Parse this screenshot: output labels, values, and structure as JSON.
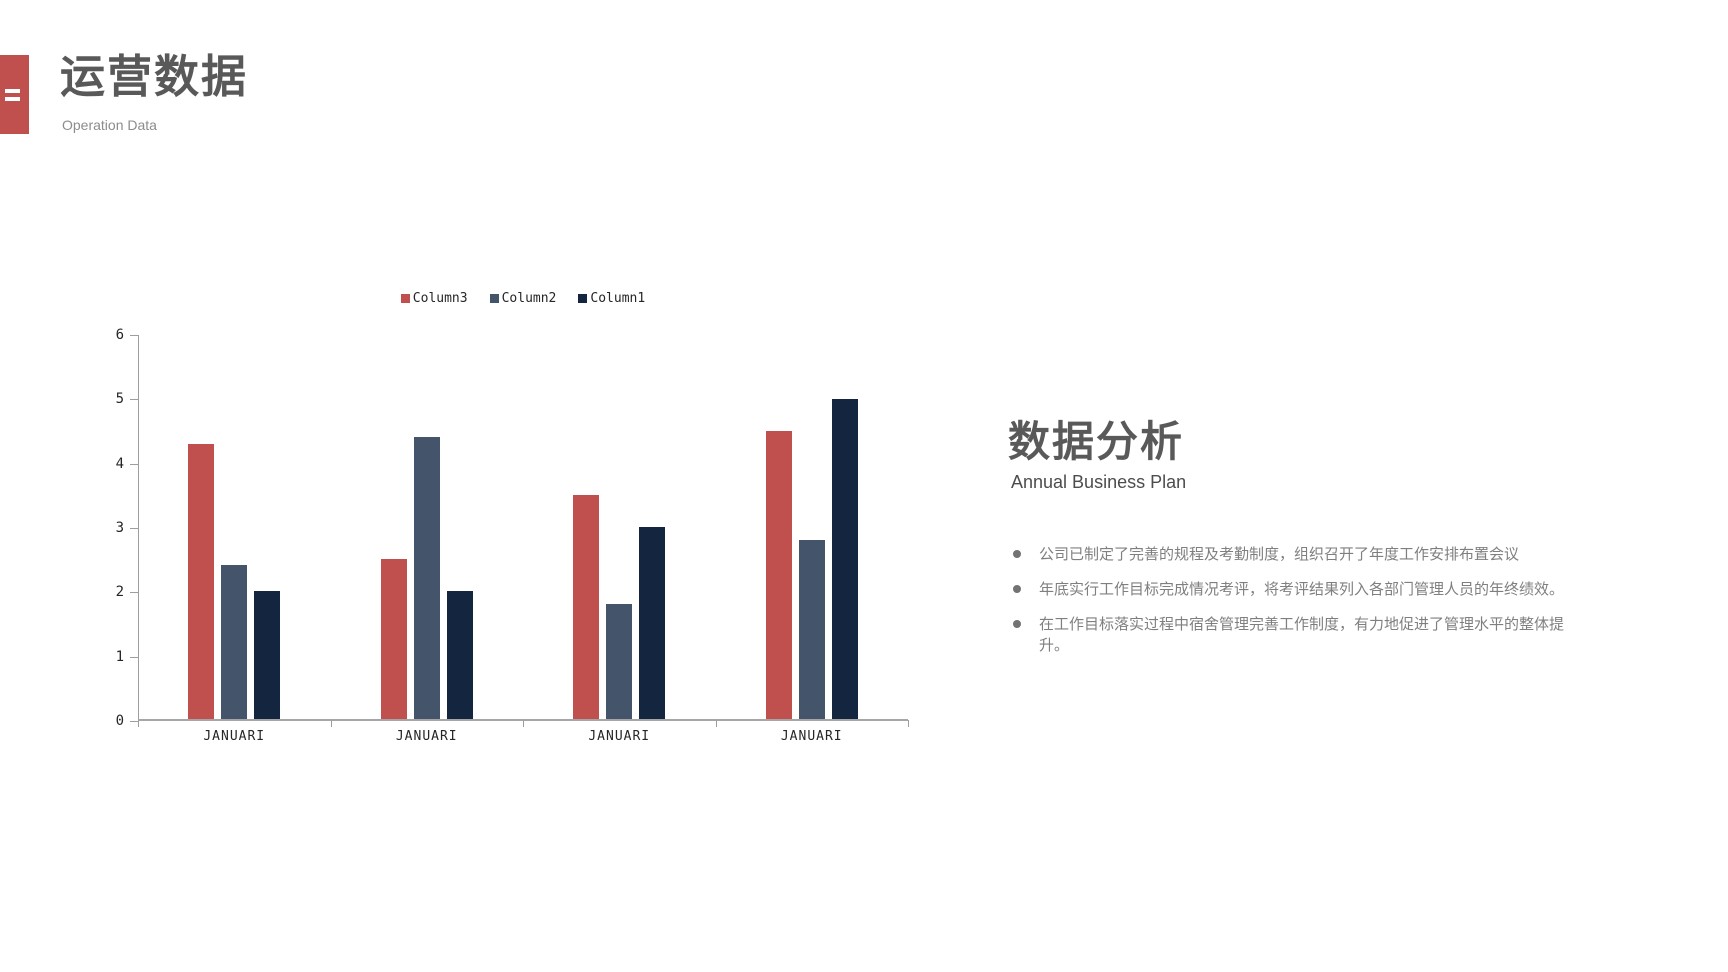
{
  "slide": {
    "header": {
      "title": "运营数据",
      "subtitle": "Operation Data",
      "accent_color": "#c0504d"
    },
    "analysis": {
      "title": "数据分析",
      "subtitle": "Annual Business Plan",
      "bullets": [
        "公司已制定了完善的规程及考勤制度，组织召开了年度工作安排布置会议",
        "年底实行工作目标完成情况考评，将考评结果列入各部门管理人员的年终绩效。",
        "在工作目标落实过程中宿舍管理完善工作制度，有力地促进了管理水平的整体提升。"
      ]
    }
  },
  "chart_data": {
    "type": "bar",
    "title": "",
    "categories": [
      "JANUARI",
      "JANUARI",
      "JANUARI",
      "JANUARI"
    ],
    "series": [
      {
        "name": "Column3",
        "color": "#c0504d",
        "values": [
          4.3,
          2.5,
          3.5,
          4.5
        ]
      },
      {
        "name": "Column2",
        "color": "#44546a",
        "values": [
          2.4,
          4.4,
          1.8,
          2.8
        ]
      },
      {
        "name": "Column1",
        "color": "#14263f",
        "values": [
          2.0,
          2.0,
          3.0,
          5.0
        ]
      }
    ],
    "xlabel": "",
    "ylabel": "",
    "ylim": [
      0,
      6
    ],
    "yticks": [
      0,
      1,
      2,
      3,
      4,
      5,
      6
    ],
    "legend_position": "top",
    "grid": false,
    "axis_color": "#9e9e9e",
    "tick_label_color": "#262626"
  }
}
